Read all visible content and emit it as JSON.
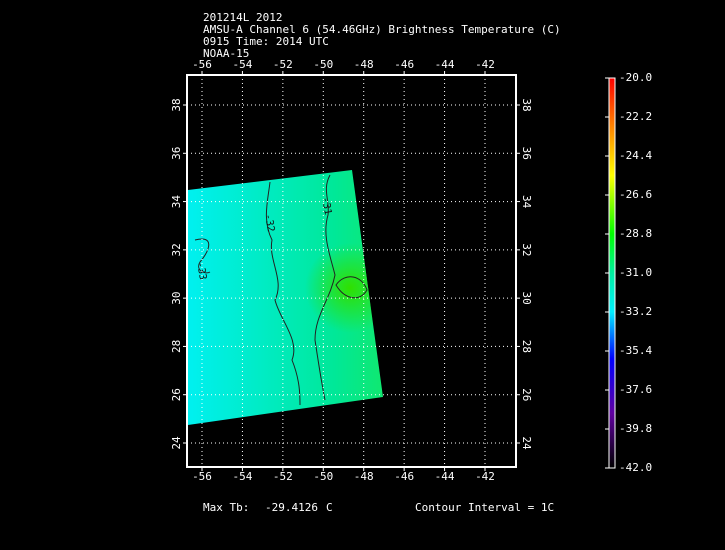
{
  "header": {
    "lines": [
      "201214L 2012",
      "AMSU-A Channel 6 (54.46GHz) Brightness Temperature (C)",
      "0915 Time: 2014 UTC",
      "NOAA-15"
    ]
  },
  "map": {
    "lon_ticks": [
      -56,
      -54,
      -52,
      -50,
      -48,
      -46,
      -44,
      -42
    ],
    "lat_ticks": [
      24,
      26,
      28,
      30,
      32,
      34,
      36,
      38
    ],
    "contour_labels": [
      "-31",
      "-32",
      "-33"
    ]
  },
  "colorbar": {
    "range": [
      -42,
      -20
    ],
    "ticks": [
      {
        "value": -20,
        "label": "-20.0"
      },
      {
        "value": -22.2,
        "label": "-22.2"
      },
      {
        "value": -24.4,
        "label": "-24.4"
      },
      {
        "value": -26.6,
        "label": "-26.6"
      },
      {
        "value": -28.8,
        "label": "-28.8"
      },
      {
        "value": -31,
        "label": "-31.0"
      },
      {
        "value": -33.2,
        "label": "-33.2"
      },
      {
        "value": -35.4,
        "label": "-35.4"
      },
      {
        "value": -37.6,
        "label": "-37.6"
      },
      {
        "value": -39.8,
        "label": "-39.8"
      },
      {
        "value": -42,
        "label": "-42.0"
      }
    ]
  },
  "footer": {
    "max_label": "Max Tb:",
    "max_value": "-29.4126",
    "max_unit": "C",
    "contour_interval": "Contour Interval = 1C"
  }
}
